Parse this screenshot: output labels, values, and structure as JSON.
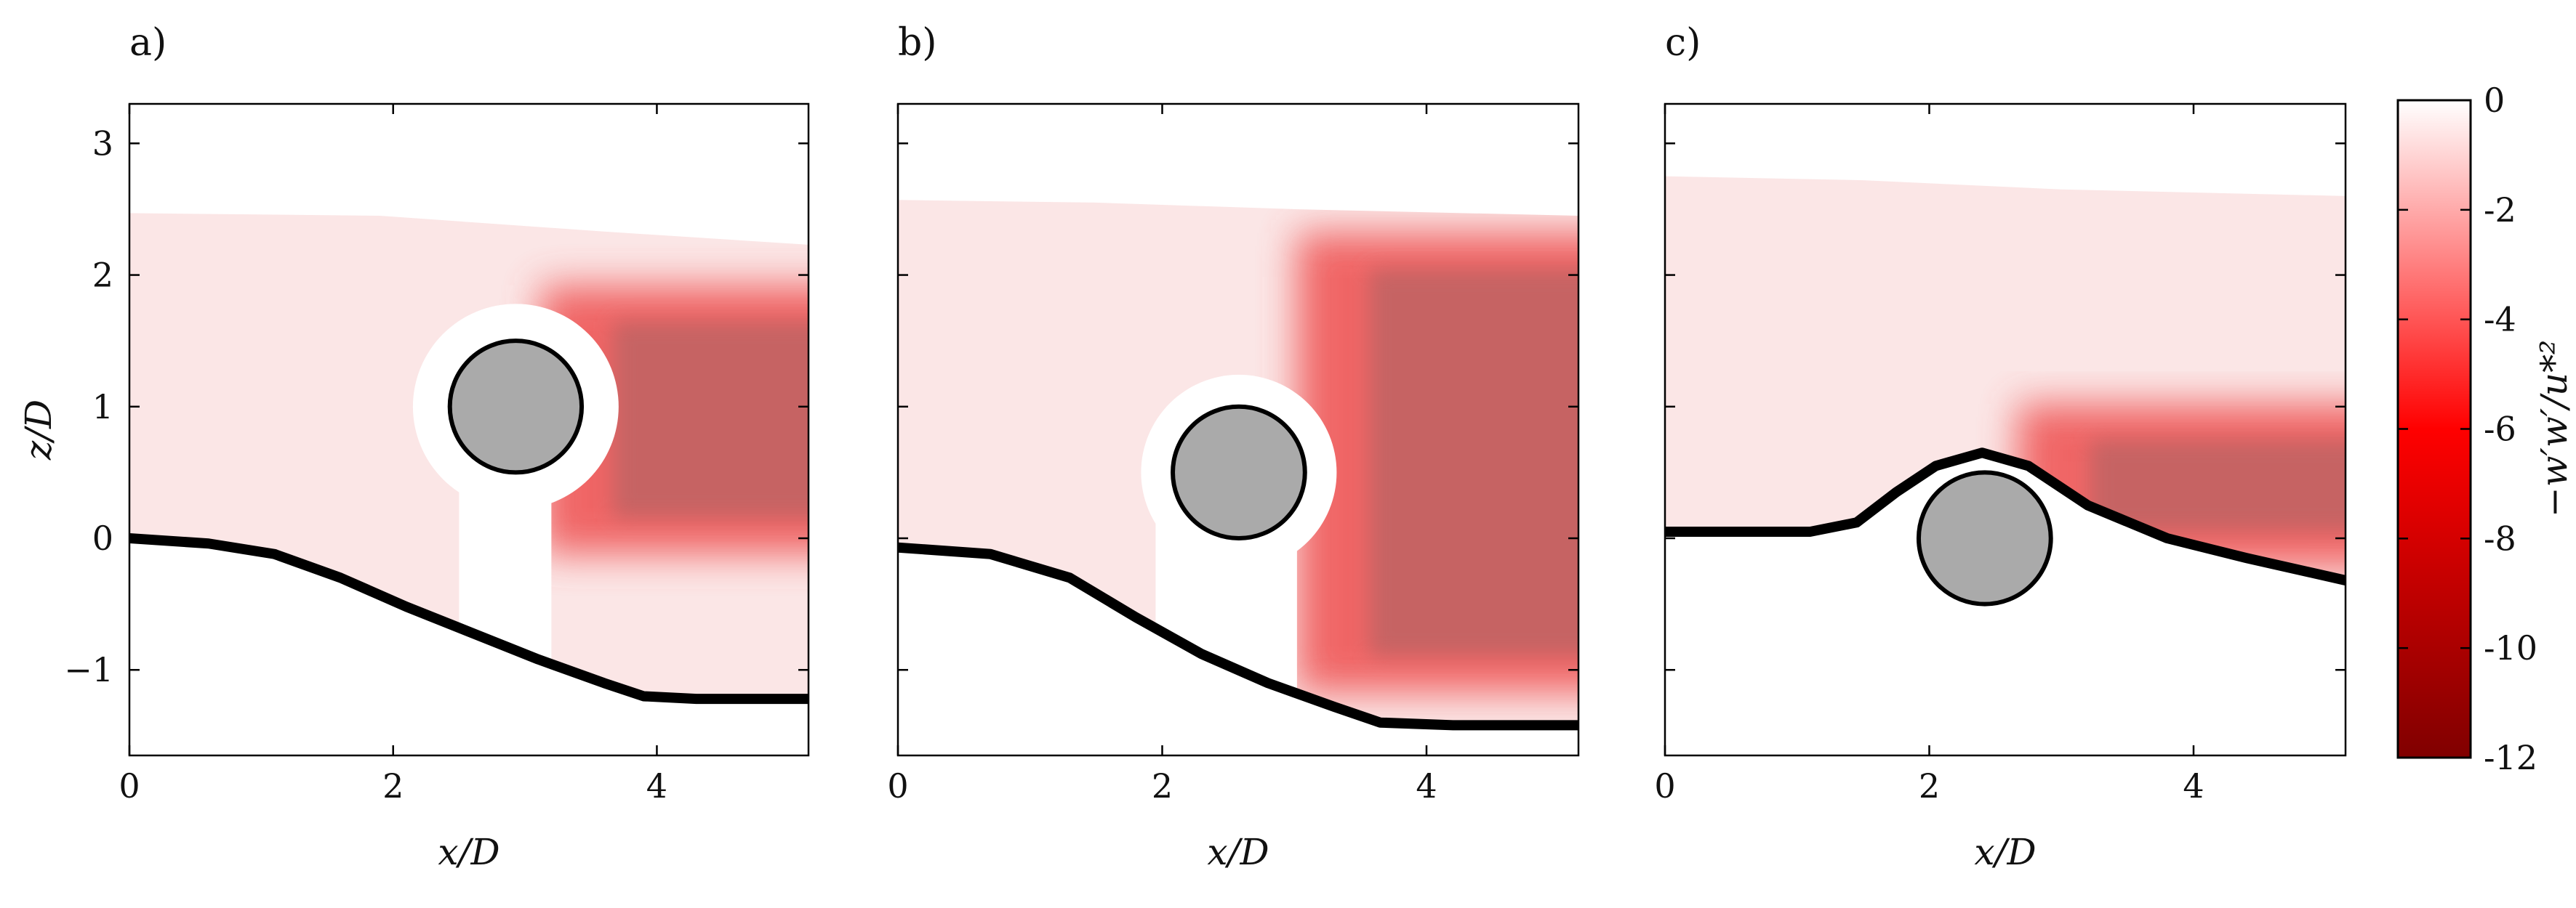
{
  "chart_data": [
    {
      "type": "heatmap",
      "panel_label": "a)",
      "xlabel": "x/D",
      "ylabel": "z/D",
      "xlim": [
        0,
        5.15
      ],
      "ylim": [
        -1.65,
        3.3
      ],
      "xticks": [
        0,
        2,
        4
      ],
      "yticks": [
        -1,
        0,
        1,
        2,
        3
      ],
      "cylinder": {
        "cx": 2.93,
        "cz": 1.0,
        "r": 0.5
      },
      "shadow_halo_r": 0.78,
      "shadow_strip": [
        2.5,
        3.2
      ],
      "field_top": [
        [
          0,
          2.47
        ],
        [
          1.9,
          2.45
        ],
        [
          3.6,
          2.33
        ],
        [
          5.15,
          2.23
        ]
      ],
      "bed": [
        [
          0,
          0
        ],
        [
          0.6,
          -0.04
        ],
        [
          1.1,
          -0.12
        ],
        [
          1.6,
          -0.3
        ],
        [
          2.1,
          -0.52
        ],
        [
          2.6,
          -0.72
        ],
        [
          3.1,
          -0.92
        ],
        [
          3.6,
          -1.1
        ],
        [
          3.9,
          -1.2
        ],
        [
          4.3,
          -1.22
        ],
        [
          5.15,
          -1.22
        ]
      ],
      "wake": {
        "x0": 3.45,
        "x1": 5.15,
        "z0": 0.1,
        "z1": 1.7
      }
    },
    {
      "type": "heatmap",
      "panel_label": "b)",
      "xlabel": "x/D",
      "ylabel": "",
      "xlim": [
        0,
        5.15
      ],
      "ylim": [
        -1.65,
        3.3
      ],
      "xticks": [
        0,
        2,
        4
      ],
      "yticks": [
        -1,
        0,
        1,
        2,
        3
      ],
      "show_ytick_labels": false,
      "cylinder": {
        "cx": 2.58,
        "cz": 0.5,
        "r": 0.5
      },
      "shadow_halo_r": 0.74,
      "shadow_strip": [
        1.95,
        3.02
      ],
      "field_top": [
        [
          0,
          2.57
        ],
        [
          1.5,
          2.55
        ],
        [
          3.0,
          2.5
        ],
        [
          5.15,
          2.45
        ]
      ],
      "bed": [
        [
          0,
          -0.07
        ],
        [
          0.7,
          -0.12
        ],
        [
          1.3,
          -0.3
        ],
        [
          1.8,
          -0.6
        ],
        [
          2.3,
          -0.88
        ],
        [
          2.8,
          -1.1
        ],
        [
          3.3,
          -1.28
        ],
        [
          3.65,
          -1.4
        ],
        [
          4.2,
          -1.42
        ],
        [
          5.15,
          -1.42
        ]
      ],
      "wake": {
        "x0": 3.35,
        "x1": 5.15,
        "z0": -0.95,
        "z1": 2.1
      }
    },
    {
      "type": "heatmap",
      "panel_label": "c)",
      "xlabel": "x/D",
      "ylabel": "",
      "xlim": [
        0,
        5.15
      ],
      "ylim": [
        -1.65,
        3.3
      ],
      "xticks": [
        0,
        2,
        4
      ],
      "yticks": [
        -1,
        0,
        1,
        2,
        3
      ],
      "show_ytick_labels": false,
      "cylinder": {
        "cx": 2.42,
        "cz": 0.0,
        "r": 0.5
      },
      "shadow_halo_r": 0,
      "shadow_strip": null,
      "field_top": [
        [
          0,
          2.75
        ],
        [
          1.5,
          2.72
        ],
        [
          3.0,
          2.65
        ],
        [
          5.15,
          2.6
        ]
      ],
      "bed": [
        [
          0,
          0.05
        ],
        [
          0.6,
          0.05
        ],
        [
          1.1,
          0.05
        ],
        [
          1.45,
          0.12
        ],
        [
          1.75,
          0.35
        ],
        [
          2.05,
          0.55
        ],
        [
          2.4,
          0.65
        ],
        [
          2.75,
          0.55
        ],
        [
          3.2,
          0.25
        ],
        [
          3.8,
          0.0
        ],
        [
          4.4,
          -0.15
        ],
        [
          5.15,
          -0.32
        ]
      ],
      "wake": {
        "x0": 3.0,
        "x1": 5.15,
        "z0": 0.0,
        "z1": 0.8
      }
    }
  ],
  "colorbar": {
    "label": "−w′w′/u*²",
    "min": -12,
    "max": 0,
    "ticks": [
      0,
      -2,
      -4,
      -6,
      -8,
      -10,
      -12
    ],
    "tick_labels": [
      "0",
      "-2",
      "-4",
      "-6",
      "-8",
      "-10",
      "-12"
    ],
    "colors": [
      "#ffffff",
      "#ff0000",
      "#800000"
    ]
  },
  "colors": {
    "field_light": "#fbe6e6",
    "field_mid": "#f59a9a",
    "wake": "#c66363",
    "wake_edge": "#ee5050",
    "cylinder_fill": "#aaaaaa",
    "bed": "#000000"
  }
}
